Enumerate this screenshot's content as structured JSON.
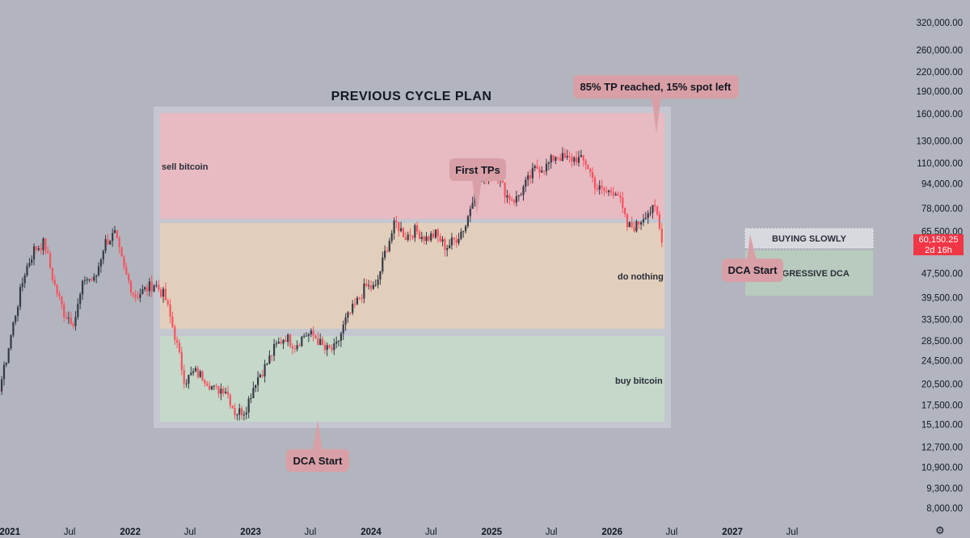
{
  "chart_data": {
    "type": "candlestick",
    "title": "PREVIOUS CYCLE PLAN",
    "y_scale": "log",
    "ylim": [
      7200,
      380000
    ],
    "y_ticks": [
      "320,000.00",
      "260,000.00",
      "220,000.00",
      "190,000.00",
      "160,000.00",
      "130,000.00",
      "110,000.00",
      "94,000.00",
      "78,000.00",
      "65,500.00",
      "47,500.00",
      "39,500.00",
      "33,500.00",
      "28,500.00",
      "24,500.00",
      "20,500.00",
      "17,500.00",
      "15,100.00",
      "12,700.00",
      "10,900.00",
      "9,300.00",
      "8,000.00"
    ],
    "x_ticks": [
      {
        "label": "Jul",
        "year": false
      },
      {
        "label": "2021",
        "year": true
      },
      {
        "label": "Jul",
        "year": false
      },
      {
        "label": "2022",
        "year": true
      },
      {
        "label": "Jul",
        "year": false
      },
      {
        "label": "2023",
        "year": true
      },
      {
        "label": "Jul",
        "year": false
      },
      {
        "label": "2024",
        "year": true
      },
      {
        "label": "Jul",
        "year": false
      },
      {
        "label": "2025",
        "year": true
      },
      {
        "label": "Jul",
        "year": false
      },
      {
        "label": "2026",
        "year": true
      },
      {
        "label": "Jul",
        "year": false
      },
      {
        "label": "2027",
        "year": true
      },
      {
        "label": "Jul",
        "year": false
      }
    ],
    "x_tick_dates": [
      "2020-07",
      "2021-01",
      "2021-07",
      "2022-01",
      "2022-07",
      "2023-01",
      "2023-07",
      "2024-01",
      "2024-07",
      "2025-01",
      "2025-07",
      "2026-01",
      "2026-07",
      "2027-01",
      "2027-07"
    ],
    "series_close": [
      [
        "2020-06-15",
        9200
      ],
      [
        "2020-07-15",
        9700
      ],
      [
        "2020-08-15",
        11600
      ],
      [
        "2020-09-15",
        10800
      ],
      [
        "2020-10-15",
        11500
      ],
      [
        "2020-11-15",
        17500
      ],
      [
        "2020-12-15",
        23000
      ],
      [
        "2021-01-15",
        34000
      ],
      [
        "2021-02-15",
        48000
      ],
      [
        "2021-03-15",
        57000
      ],
      [
        "2021-04-15",
        60000
      ],
      [
        "2021-05-15",
        44000
      ],
      [
        "2021-06-15",
        35000
      ],
      [
        "2021-07-15",
        33000
      ],
      [
        "2021-08-15",
        46000
      ],
      [
        "2021-09-15",
        45000
      ],
      [
        "2021-10-15",
        60000
      ],
      [
        "2021-11-15",
        64000
      ],
      [
        "2021-12-15",
        48000
      ],
      [
        "2022-01-15",
        40000
      ],
      [
        "2022-02-15",
        42000
      ],
      [
        "2022-03-15",
        44000
      ],
      [
        "2022-04-15",
        40000
      ],
      [
        "2022-05-15",
        30000
      ],
      [
        "2022-06-15",
        21000
      ],
      [
        "2022-07-15",
        22500
      ],
      [
        "2022-08-15",
        21500
      ],
      [
        "2022-09-15",
        19500
      ],
      [
        "2022-10-15",
        20000
      ],
      [
        "2022-11-15",
        16500
      ],
      [
        "2022-12-15",
        16800
      ],
      [
        "2023-01-15",
        21000
      ],
      [
        "2023-02-15",
        23500
      ],
      [
        "2023-03-15",
        27000
      ],
      [
        "2023-04-15",
        29500
      ],
      [
        "2023-05-15",
        27500
      ],
      [
        "2023-06-15",
        30000
      ],
      [
        "2023-07-15",
        29500
      ],
      [
        "2023-08-15",
        26500
      ],
      [
        "2023-09-15",
        26800
      ],
      [
        "2023-10-15",
        33000
      ],
      [
        "2023-11-15",
        37500
      ],
      [
        "2023-12-15",
        43000
      ],
      [
        "2024-01-15",
        42500
      ],
      [
        "2024-02-15",
        57000
      ],
      [
        "2024-03-15",
        70000
      ],
      [
        "2024-04-15",
        63000
      ],
      [
        "2024-05-15",
        66000
      ],
      [
        "2024-06-15",
        62000
      ],
      [
        "2024-07-15",
        64000
      ],
      [
        "2024-08-15",
        58000
      ],
      [
        "2024-09-15",
        62000
      ],
      [
        "2024-10-15",
        69000
      ],
      [
        "2024-11-15",
        95000
      ],
      [
        "2024-12-15",
        100000
      ],
      [
        "2025-01-15",
        102000
      ],
      [
        "2025-02-15",
        86000
      ],
      [
        "2025-03-15",
        83000
      ],
      [
        "2025-04-15",
        94000
      ],
      [
        "2025-05-15",
        106000
      ],
      [
        "2025-06-15",
        107000
      ],
      [
        "2025-07-15",
        117000
      ],
      [
        "2025-08-15",
        113000
      ],
      [
        "2025-09-15",
        114000
      ],
      [
        "2025-10-15",
        110000
      ],
      [
        "2025-11-15",
        91000
      ],
      [
        "2025-12-15",
        88000
      ],
      [
        "2026-01-15",
        90000
      ],
      [
        "2026-02-15",
        68000
      ],
      [
        "2026-03-15",
        68000
      ],
      [
        "2026-04-15",
        76000
      ],
      [
        "2026-05-15",
        77000
      ],
      [
        "2026-06-01",
        60150
      ]
    ],
    "zones": [
      {
        "label": "sell bitcoin",
        "color": "#f4b6bd"
      },
      {
        "label": "do nothing",
        "color": "#e9d1b6"
      },
      {
        "label": "buy bitcoin",
        "color": "#c5dac8"
      }
    ],
    "annotations": [
      {
        "text": "85% TP reached, 15% spot left"
      },
      {
        "text": "First TPs"
      },
      {
        "text": "DCA Start"
      },
      {
        "text": "DCA Start"
      },
      {
        "text": "BUYING SLOWLY"
      },
      {
        "text": "AGGRESSIVE DCA"
      }
    ],
    "last_price": "60,150.25",
    "countdown": "2d 16h",
    "colors": {
      "up": "#363a45",
      "down": "#f7525f",
      "background": "#b2b5be",
      "last_price": "#f23645",
      "callout": "#d8a0a6"
    }
  }
}
